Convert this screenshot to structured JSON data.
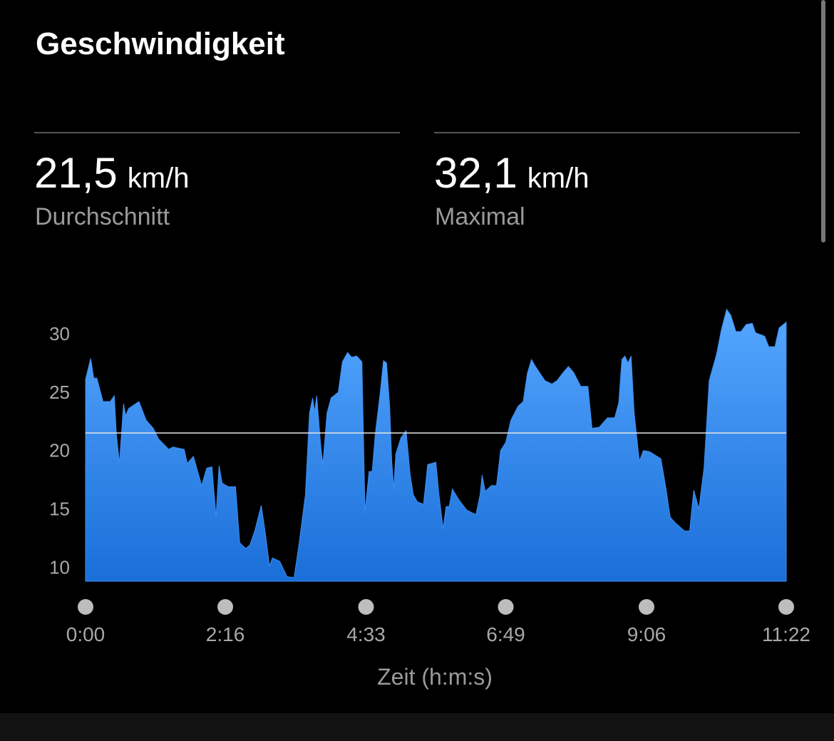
{
  "header": {
    "title": "Geschwindigkeit"
  },
  "stats": [
    {
      "value": "21,5",
      "unit": "km/h",
      "label": "Durchschnitt"
    },
    {
      "value": "32,1",
      "unit": "km/h",
      "label": "Maximal"
    }
  ],
  "chart_data": {
    "type": "area",
    "xlabel": "Zeit (h:m:s)",
    "color": "#3d8ef0",
    "average": 21.5,
    "x": [
      0,
      5,
      8,
      11,
      17,
      24,
      28,
      30,
      33,
      37,
      39,
      42,
      52,
      59,
      66,
      71,
      81,
      85,
      96,
      99,
      105,
      113,
      118,
      123,
      127,
      130,
      133,
      139,
      146,
      150,
      156,
      160,
      165,
      171,
      175,
      179,
      182,
      189,
      196,
      203,
      208,
      214,
      218,
      221,
      223,
      225,
      229,
      231,
      235,
      239,
      246,
      250,
      255,
      259,
      264,
      269,
      272,
      276,
      279,
      282,
      287,
      290,
      293,
      296,
      298,
      300,
      302,
      307,
      312,
      316,
      319,
      323,
      329,
      333,
      341,
      344,
      348,
      351,
      354,
      357,
      364,
      371,
      380,
      384,
      386,
      389,
      395,
      400,
      404,
      409,
      414,
      421,
      426,
      430,
      434,
      438,
      447,
      454,
      459,
      465,
      470,
      475,
      482,
      489,
      493,
      500,
      508,
      515,
      519,
      522,
      525,
      528,
      531,
      534,
      539,
      543,
      549,
      560,
      565,
      569,
      574,
      583,
      588,
      592,
      597,
      602,
      607,
      614,
      619,
      624,
      628,
      633,
      638,
      643,
      649,
      652,
      661,
      665,
      671,
      675,
      682
    ],
    "values": [
      26.1,
      27.9,
      26.2,
      26.2,
      24.2,
      24.2,
      24.7,
      21.4,
      18.9,
      24.0,
      23.0,
      23.6,
      24.2,
      22.6,
      21.9,
      21.0,
      20.1,
      20.3,
      20.1,
      18.9,
      19.5,
      17.0,
      18.5,
      18.6,
      14.3,
      18.7,
      17.2,
      16.9,
      16.9,
      12.1,
      11.6,
      11.9,
      13.2,
      15.3,
      12.9,
      10.1,
      10.8,
      10.5,
      9.2,
      9.1,
      12.1,
      16.2,
      23.2,
      24.5,
      23.3,
      24.7,
      20.3,
      18.8,
      23.2,
      24.5,
      25.0,
      27.6,
      28.4,
      28.0,
      28.1,
      27.6,
      14.7,
      18.2,
      18.2,
      21.4,
      25.1,
      27.7,
      27.5,
      23.8,
      19.1,
      16.7,
      19.7,
      21.1,
      21.7,
      17.9,
      16.2,
      15.6,
      15.4,
      18.8,
      19.0,
      16.2,
      13.3,
      15.2,
      15.2,
      16.7,
      15.7,
      14.9,
      14.5,
      16.2,
      17.9,
      16.5,
      17.0,
      17.0,
      20.0,
      20.7,
      22.6,
      23.8,
      24.2,
      26.6,
      27.8,
      27.2,
      26.0,
      25.7,
      26.0,
      26.7,
      27.2,
      26.7,
      25.5,
      25.5,
      21.9,
      22.0,
      22.8,
      22.8,
      24.1,
      27.8,
      28.1,
      27.5,
      28.1,
      23.2,
      19.1,
      20.0,
      19.9,
      19.3,
      16.7,
      14.3,
      13.8,
      13.1,
      13.1,
      16.6,
      15.0,
      18.5,
      26.0,
      28.2,
      30.4,
      32.1,
      31.6,
      30.2,
      30.2,
      30.8,
      30.9,
      30.1,
      29.8,
      28.9,
      28.9,
      30.5,
      31.0
    ],
    "xlim": [
      0,
      682
    ],
    "xticks": [
      {
        "value": 0,
        "label": "0:00"
      },
      {
        "value": 136,
        "label": "2:16"
      },
      {
        "value": 273,
        "label": "4:33"
      },
      {
        "value": 409,
        "label": "6:49"
      },
      {
        "value": 546,
        "label": "9:06"
      },
      {
        "value": 682,
        "label": "11:22"
      }
    ],
    "ylim": [
      8.8,
      33
    ],
    "yticks": [
      10,
      15,
      20,
      25,
      30
    ]
  }
}
